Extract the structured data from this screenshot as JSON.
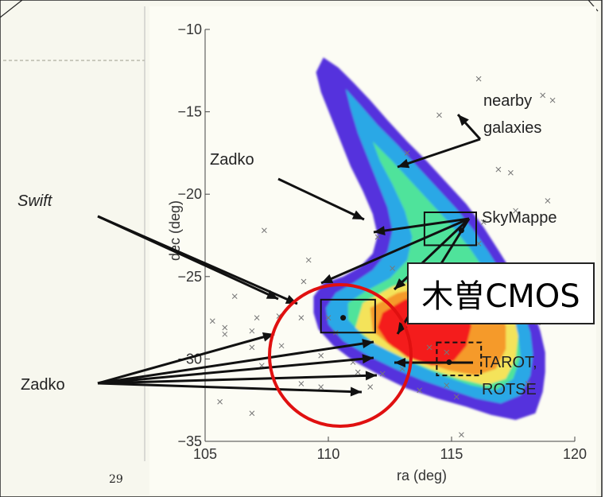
{
  "chart_data": {
    "type": "heatmap",
    "title": "",
    "xlabel": "ra (deg)",
    "ylabel": "dec (deg)",
    "xlim": [
      105,
      120
    ],
    "ylim": [
      -35,
      -10
    ],
    "xticks": [
      "105",
      "110",
      "115",
      "120"
    ],
    "yticks": [
      "−10",
      "−15",
      "−20",
      "−25",
      "−30",
      "−35"
    ],
    "galaxies": [
      [
        116.1,
        -13.0
      ],
      [
        114.5,
        -15.2
      ],
      [
        118.7,
        -14.0
      ],
      [
        119.1,
        -14.3
      ],
      [
        113.2,
        -17.5
      ],
      [
        116.9,
        -18.5
      ],
      [
        117.4,
        -18.7
      ],
      [
        118.9,
        -20.4
      ],
      [
        116.3,
        -21.7
      ],
      [
        117.6,
        -21.0
      ],
      [
        107.4,
        -22.2
      ],
      [
        112.0,
        -22.6
      ],
      [
        116.1,
        -23.0
      ],
      [
        109.2,
        -24.0
      ],
      [
        112.6,
        -24.5
      ],
      [
        109.0,
        -25.3
      ],
      [
        118.0,
        -25.4
      ],
      [
        117.9,
        -26.4
      ],
      [
        116.2,
        -26.5
      ],
      [
        118.5,
        -27.8
      ],
      [
        106.2,
        -26.2
      ],
      [
        107.1,
        -27.5
      ],
      [
        108.0,
        -27.4
      ],
      [
        108.9,
        -27.5
      ],
      [
        110.0,
        -27.5
      ],
      [
        105.8,
        -28.1
      ],
      [
        106.9,
        -28.3
      ],
      [
        105.8,
        -28.5
      ],
      [
        105.3,
        -27.7
      ],
      [
        110.3,
        -28.4
      ],
      [
        106.9,
        -29.3
      ],
      [
        108.1,
        -29.2
      ],
      [
        109.7,
        -29.8
      ],
      [
        107.3,
        -30.4
      ],
      [
        108.9,
        -31.5
      ],
      [
        109.7,
        -31.7
      ],
      [
        111.0,
        -30.2
      ],
      [
        111.2,
        -30.8
      ],
      [
        112.2,
        -30.9
      ],
      [
        111.7,
        -31.7
      ],
      [
        113.0,
        -30.6
      ],
      [
        113.7,
        -31.9
      ],
      [
        114.8,
        -31.6
      ],
      [
        115.2,
        -32.3
      ],
      [
        118.1,
        -31.5
      ],
      [
        105.6,
        -32.6
      ],
      [
        106.9,
        -33.3
      ],
      [
        115.4,
        -34.6
      ],
      [
        114.1,
        -29.3
      ],
      [
        114.8,
        -29.6
      ]
    ],
    "contours": [
      {
        "level": "outer",
        "color": "#5533dd",
        "points": [
          [
            109.8,
            -11.7
          ],
          [
            110.4,
            -12.3
          ],
          [
            111.0,
            -13.2
          ],
          [
            111.7,
            -14.3
          ],
          [
            112.4,
            -15.5
          ],
          [
            113.2,
            -16.8
          ],
          [
            114.0,
            -18.0
          ],
          [
            114.8,
            -19.3
          ],
          [
            115.6,
            -20.6
          ],
          [
            116.3,
            -22.0
          ],
          [
            116.9,
            -23.4
          ],
          [
            117.4,
            -24.6
          ],
          [
            117.9,
            -25.8
          ],
          [
            118.3,
            -27.0
          ],
          [
            118.6,
            -28.3
          ],
          [
            118.8,
            -29.6
          ],
          [
            118.8,
            -30.8
          ],
          [
            118.7,
            -32.0
          ],
          [
            118.4,
            -33.3
          ],
          [
            117.6,
            -33.7
          ],
          [
            116.6,
            -33.4
          ],
          [
            115.6,
            -32.9
          ],
          [
            114.4,
            -32.4
          ],
          [
            113.2,
            -31.8
          ],
          [
            112.1,
            -31.0
          ],
          [
            111.0,
            -30.1
          ],
          [
            110.2,
            -29.2
          ],
          [
            109.6,
            -28.2
          ],
          [
            109.4,
            -27.2
          ],
          [
            109.4,
            -26.2
          ],
          [
            109.8,
            -25.4
          ],
          [
            110.6,
            -25.0
          ],
          [
            111.3,
            -24.4
          ],
          [
            111.8,
            -23.6
          ],
          [
            112.0,
            -22.5
          ],
          [
            111.8,
            -21.2
          ],
          [
            111.4,
            -19.8
          ],
          [
            110.9,
            -18.3
          ],
          [
            110.5,
            -16.8
          ],
          [
            110.1,
            -15.3
          ],
          [
            109.7,
            -13.8
          ],
          [
            109.5,
            -12.6
          ]
        ]
      },
      {
        "level": "mid",
        "color": "#2aa8e6",
        "points": [
          [
            110.7,
            -13.6
          ],
          [
            111.3,
            -14.6
          ],
          [
            112.0,
            -15.8
          ],
          [
            112.8,
            -17.0
          ],
          [
            113.6,
            -18.3
          ],
          [
            114.4,
            -19.6
          ],
          [
            115.2,
            -20.9
          ],
          [
            115.9,
            -22.2
          ],
          [
            116.5,
            -23.5
          ],
          [
            117.0,
            -24.7
          ],
          [
            117.5,
            -25.9
          ],
          [
            117.9,
            -27.1
          ],
          [
            118.2,
            -28.4
          ],
          [
            118.3,
            -29.7
          ],
          [
            118.2,
            -31.0
          ],
          [
            117.8,
            -32.2
          ],
          [
            117.0,
            -32.7
          ],
          [
            116.0,
            -32.4
          ],
          [
            115.0,
            -31.9
          ],
          [
            113.8,
            -31.3
          ],
          [
            112.7,
            -30.6
          ],
          [
            111.6,
            -29.8
          ],
          [
            110.6,
            -28.9
          ],
          [
            110.0,
            -27.9
          ],
          [
            109.9,
            -26.9
          ],
          [
            110.3,
            -26.0
          ],
          [
            111.0,
            -25.4
          ],
          [
            111.8,
            -24.6
          ],
          [
            112.4,
            -23.5
          ],
          [
            112.6,
            -22.2
          ],
          [
            112.4,
            -20.8
          ],
          [
            112.0,
            -19.3
          ],
          [
            111.6,
            -17.8
          ],
          [
            111.2,
            -16.3
          ],
          [
            110.9,
            -14.8
          ]
        ]
      },
      {
        "level": "green",
        "color": "#4fe39b",
        "points": [
          [
            111.8,
            -16.8
          ],
          [
            112.6,
            -18.0
          ],
          [
            113.4,
            -19.3
          ],
          [
            114.2,
            -20.6
          ],
          [
            115.0,
            -21.9
          ],
          [
            115.7,
            -23.2
          ],
          [
            116.3,
            -24.5
          ],
          [
            116.9,
            -25.8
          ],
          [
            117.4,
            -27.1
          ],
          [
            117.7,
            -28.5
          ],
          [
            117.8,
            -29.9
          ],
          [
            117.5,
            -31.2
          ],
          [
            116.8,
            -31.9
          ],
          [
            115.8,
            -31.6
          ],
          [
            114.6,
            -31.0
          ],
          [
            113.5,
            -30.3
          ],
          [
            112.4,
            -29.5
          ],
          [
            111.4,
            -28.6
          ],
          [
            110.8,
            -27.6
          ],
          [
            110.8,
            -26.6
          ],
          [
            111.5,
            -25.9
          ],
          [
            112.5,
            -25.1
          ],
          [
            113.2,
            -24.0
          ],
          [
            113.4,
            -22.6
          ],
          [
            113.1,
            -21.0
          ],
          [
            112.6,
            -19.4
          ],
          [
            112.1,
            -18.0
          ]
        ]
      },
      {
        "level": "yellow",
        "color": "#f4e35a",
        "points": [
          [
            111.4,
            -26.6
          ],
          [
            112.6,
            -25.6
          ],
          [
            113.8,
            -25.1
          ],
          [
            115.0,
            -24.9
          ],
          [
            116.1,
            -25.2
          ],
          [
            117.0,
            -26.0
          ],
          [
            117.5,
            -27.2
          ],
          [
            117.7,
            -28.6
          ],
          [
            117.6,
            -30.0
          ],
          [
            117.2,
            -31.2
          ],
          [
            116.4,
            -31.6
          ],
          [
            115.3,
            -31.2
          ],
          [
            114.1,
            -30.6
          ],
          [
            113.0,
            -29.9
          ],
          [
            111.9,
            -29.1
          ],
          [
            111.1,
            -28.1
          ]
        ]
      },
      {
        "level": "orange",
        "color": "#f59a2a",
        "points": [
          [
            111.7,
            -26.9
          ],
          [
            112.8,
            -26.0
          ],
          [
            114.0,
            -25.6
          ],
          [
            115.2,
            -25.5
          ],
          [
            116.2,
            -25.9
          ],
          [
            116.9,
            -26.8
          ],
          [
            117.2,
            -28.0
          ],
          [
            117.2,
            -29.4
          ],
          [
            116.8,
            -30.6
          ],
          [
            116.0,
            -31.0
          ],
          [
            114.9,
            -30.7
          ],
          [
            113.7,
            -30.1
          ],
          [
            112.6,
            -29.3
          ],
          [
            111.8,
            -28.3
          ]
        ]
      },
      {
        "level": "red",
        "color": "#f41f1f",
        "points": [
          [
            112.2,
            -27.2
          ],
          [
            113.1,
            -26.4
          ],
          [
            114.1,
            -26.1
          ],
          [
            115.0,
            -26.2
          ],
          [
            115.6,
            -26.9
          ],
          [
            115.8,
            -28.0
          ],
          [
            115.6,
            -29.2
          ],
          [
            115.1,
            -30.1
          ],
          [
            114.2,
            -30.4
          ],
          [
            113.2,
            -29.9
          ],
          [
            112.4,
            -29.0
          ],
          [
            112.0,
            -28.1
          ]
        ]
      }
    ],
    "boxes": [
      {
        "name": "zadko-upper",
        "x0": 113.9,
        "x1": 116.0,
        "y0": -23.1,
        "y1": -21.1,
        "dash": false
      },
      {
        "name": "skymapper",
        "x0": 114.5,
        "x1": 116.7,
        "y0": -27.0,
        "y1": -25.0,
        "dash": false
      },
      {
        "name": "swift",
        "x0": 109.7,
        "x1": 111.9,
        "y0": -28.4,
        "y1": -26.4,
        "dash": false
      },
      {
        "name": "tarot-rotse",
        "x0": 114.4,
        "x1": 116.2,
        "y0": -31.0,
        "y1": -29.0,
        "dash": true
      }
    ],
    "markers": [
      [
        115.4,
        -22.2
      ],
      [
        110.6,
        -27.5
      ],
      [
        115.5,
        -26.4
      ],
      [
        115.7,
        -26.6
      ],
      [
        114.9,
        -30.2
      ]
    ],
    "annotations": [
      {
        "name": "nearby-galaxies-1",
        "text": "nearby",
        "italic": false
      },
      {
        "name": "nearby-galaxies-2",
        "text": "galaxies",
        "italic": false
      },
      {
        "name": "zadko-top",
        "text": "Zadko",
        "italic": false
      },
      {
        "name": "swift",
        "text": "Swift",
        "italic": true
      },
      {
        "name": "skymapper",
        "text": "SkyMappe",
        "italic": false
      },
      {
        "name": "tarot-1",
        "text": "TAROT,",
        "italic": false
      },
      {
        "name": "tarot-2",
        "text": "ROTSE",
        "italic": false
      },
      {
        "name": "zadko-left",
        "text": "Zadko",
        "italic": false
      }
    ],
    "slide_number": "29"
  },
  "overlay": {
    "kiso_label": "木曽CMOS",
    "highlight_color": "#e01010"
  }
}
